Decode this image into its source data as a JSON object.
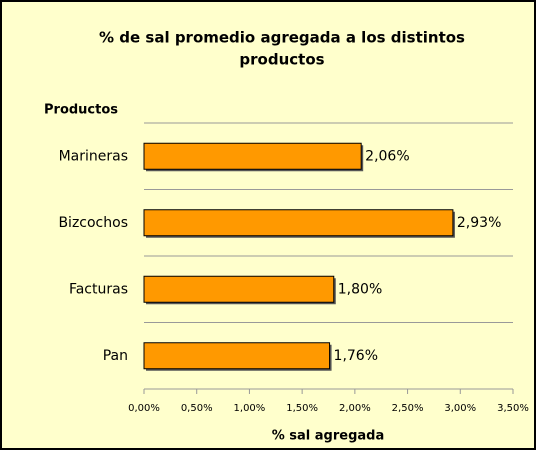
{
  "chart_data": {
    "type": "bar",
    "orientation": "horizontal",
    "title": [
      "% de sal promedio agregada a los distintos",
      "productos"
    ],
    "y_axis_title": "Productos",
    "x_axis_title": "% sal agregada",
    "categories": [
      "Marineras",
      "Bizcochos",
      "Facturas",
      "Pan"
    ],
    "values": [
      2.06,
      2.93,
      1.8,
      1.76
    ],
    "value_labels": [
      "2,06%",
      "2,93%",
      "1,80%",
      "1,76%"
    ],
    "color": "#ff9900",
    "xlim": [
      0,
      3.5
    ],
    "xticks": [
      {
        "value": 0,
        "label": "0,00%"
      },
      {
        "value": 0.5,
        "label": "0,50%"
      },
      {
        "value": 1,
        "label": "1,00%"
      },
      {
        "value": 1.5,
        "label": "1,50%"
      },
      {
        "value": 2,
        "label": "2,00%"
      },
      {
        "value": 2.5,
        "label": "2,50%"
      },
      {
        "value": 3,
        "label": "3,00%"
      },
      {
        "value": 3.5,
        "label": "3,50%"
      }
    ]
  }
}
